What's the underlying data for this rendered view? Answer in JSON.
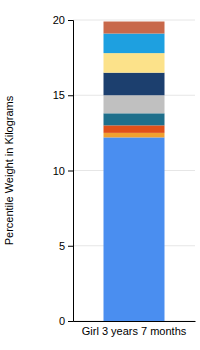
{
  "chart_data": {
    "type": "bar",
    "stacked": true,
    "grid": true,
    "ylabel": "Percentile Weight in Kilograms",
    "categories": [
      "Girl 3 years 7 months"
    ],
    "ylim": [
      0,
      20
    ],
    "yticks": [
      0,
      5,
      10,
      15,
      20
    ],
    "series": [
      {
        "color": "#4a8ef0",
        "values": [
          12.2
        ]
      },
      {
        "color": "#f0a030",
        "values": [
          0.3
        ]
      },
      {
        "color": "#e0501a",
        "values": [
          0.5
        ]
      },
      {
        "color": "#1f6f8b",
        "values": [
          0.8
        ]
      },
      {
        "color": "#c0c0c0",
        "values": [
          1.2
        ]
      },
      {
        "color": "#1c3f6e",
        "values": [
          1.5
        ]
      },
      {
        "color": "#fce28a",
        "values": [
          1.3
        ]
      },
      {
        "color": "#1ea0e0",
        "values": [
          1.3
        ]
      },
      {
        "color": "#c8684a",
        "values": [
          0.8
        ]
      }
    ]
  }
}
